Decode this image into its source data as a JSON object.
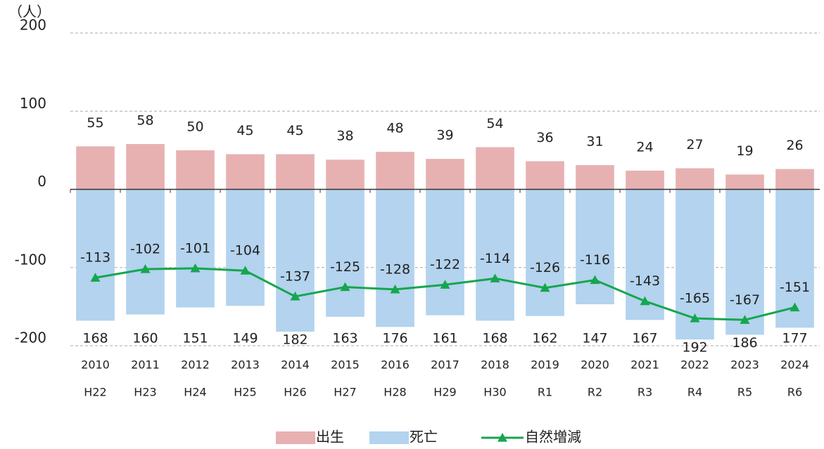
{
  "chart_data": {
    "type": "bar_line",
    "y_unit": "（人）",
    "categories": [
      "2010",
      "2011",
      "2012",
      "2013",
      "2014",
      "2015",
      "2016",
      "2017",
      "2018",
      "2019",
      "2020",
      "2021",
      "2022",
      "2023",
      "2024"
    ],
    "sub_categories": [
      "H22",
      "H23",
      "H24",
      "H25",
      "H26",
      "H27",
      "H28",
      "H29",
      "H30",
      "R1",
      "R2",
      "R3",
      "R4",
      "R5",
      "R6"
    ],
    "ylim": [
      -200,
      200
    ],
    "yticks": [
      200,
      100,
      0,
      -100,
      -200
    ],
    "grid": true,
    "legend": "bottom",
    "series": [
      {
        "name": "出生",
        "type": "bar",
        "color": "#e8b1b1",
        "values": [
          55,
          58,
          50,
          45,
          45,
          38,
          48,
          39,
          54,
          36,
          31,
          24,
          27,
          19,
          26
        ]
      },
      {
        "name": "死亡",
        "type": "bar",
        "color": "#b3d3ee",
        "values": [
          -168,
          -160,
          -151,
          -149,
          -182,
          -163,
          -176,
          -161,
          -168,
          -162,
          -147,
          -167,
          -192,
          -186,
          -177
        ],
        "value_labels": [
          "168",
          "160",
          "151",
          "149",
          "182",
          "163",
          "176",
          "161",
          "168",
          "162",
          "147",
          "167",
          "192",
          "186",
          "177"
        ]
      },
      {
        "name": "自然増減",
        "type": "line",
        "color": "#16a64e",
        "values": [
          -113,
          -102,
          -101,
          -104,
          -137,
          -125,
          -128,
          -122,
          -114,
          -126,
          -116,
          -143,
          -165,
          -167,
          -151
        ]
      }
    ]
  }
}
